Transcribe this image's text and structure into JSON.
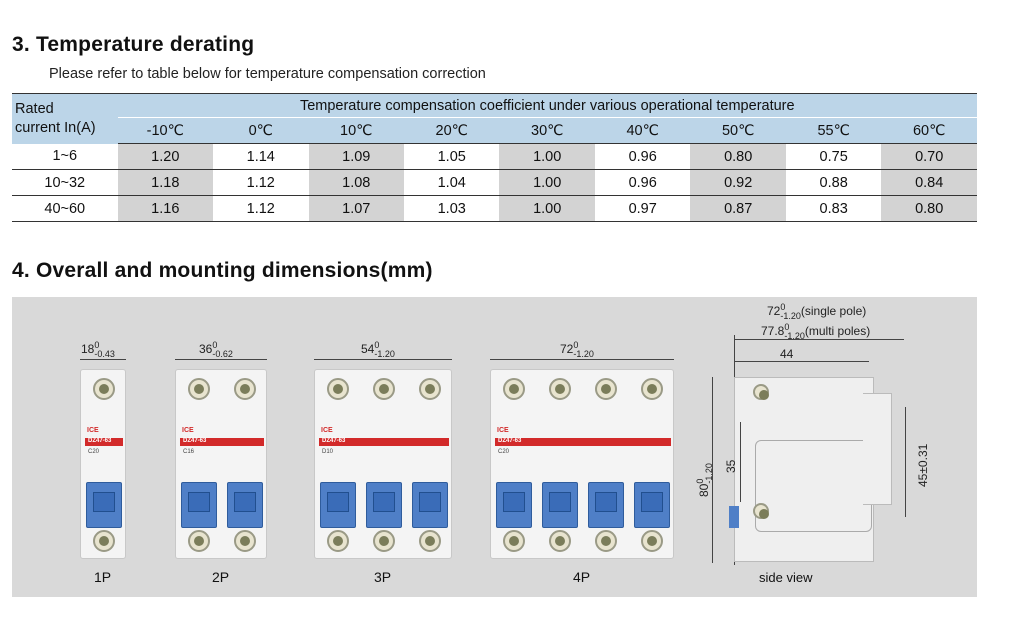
{
  "section3": {
    "heading": "3. Temperature derating",
    "subtitle": "Please refer to table below for temperature compensation correction",
    "table": {
      "rated_label_line1": "Rated",
      "rated_label_line2": "current In(A)",
      "span_header": "Temperature compensation coefficient under various operational temperature",
      "temperatures": [
        "-10℃",
        "0℃",
        "10℃",
        "20℃",
        "30℃",
        "40℃",
        "50℃",
        "55℃",
        "60℃"
      ],
      "rows": [
        {
          "current": "1~6",
          "values": [
            "1.20",
            "1.14",
            "1.09",
            "1.05",
            "1.00",
            "0.96",
            "0.80",
            "0.75",
            "0.70"
          ]
        },
        {
          "current": "10~32",
          "values": [
            "1.18",
            "1.12",
            "1.08",
            "1.04",
            "1.00",
            "0.96",
            "0.92",
            "0.88",
            "0.84"
          ]
        },
        {
          "current": "40~60",
          "values": [
            "1.16",
            "1.12",
            "1.07",
            "1.03",
            "1.00",
            "0.97",
            "0.87",
            "0.83",
            "0.80"
          ]
        }
      ]
    }
  },
  "section4": {
    "heading": "4. Overall and mounting dimensions(mm)",
    "breakers": [
      {
        "label": "1P",
        "dim_main": "18",
        "dim_upper": "0",
        "dim_lower": "-0.43",
        "brand": "ICE",
        "model": "DZ47-63",
        "rating": "C20"
      },
      {
        "label": "2P",
        "dim_main": "36",
        "dim_upper": "0",
        "dim_lower": "-0.62",
        "brand": "ICE",
        "model": "DZ47-63",
        "rating": "C16"
      },
      {
        "label": "3P",
        "dim_main": "54",
        "dim_upper": "0",
        "dim_lower": "-1.20",
        "brand": "ICE",
        "model": "DZ47-63",
        "rating": "D10"
      },
      {
        "label": "4P",
        "dim_main": "72",
        "dim_upper": "0",
        "dim_lower": "-1.20",
        "brand": "ICE",
        "model": "DZ47-63",
        "rating": "C20"
      }
    ],
    "side_view": {
      "label": "side view",
      "width_single_main": "72",
      "width_single_upper": "0",
      "width_single_lower": "-1.20",
      "width_single_note": "(single pole)",
      "width_multi_main": "77.8",
      "width_multi_upper": "0",
      "width_multi_lower": "-1.20",
      "width_multi_note": "(multi poles)",
      "depth": "44",
      "height_main": "80",
      "height_upper": "0",
      "height_lower": "-1.20",
      "rail": "35",
      "front": "45±0.31"
    }
  }
}
